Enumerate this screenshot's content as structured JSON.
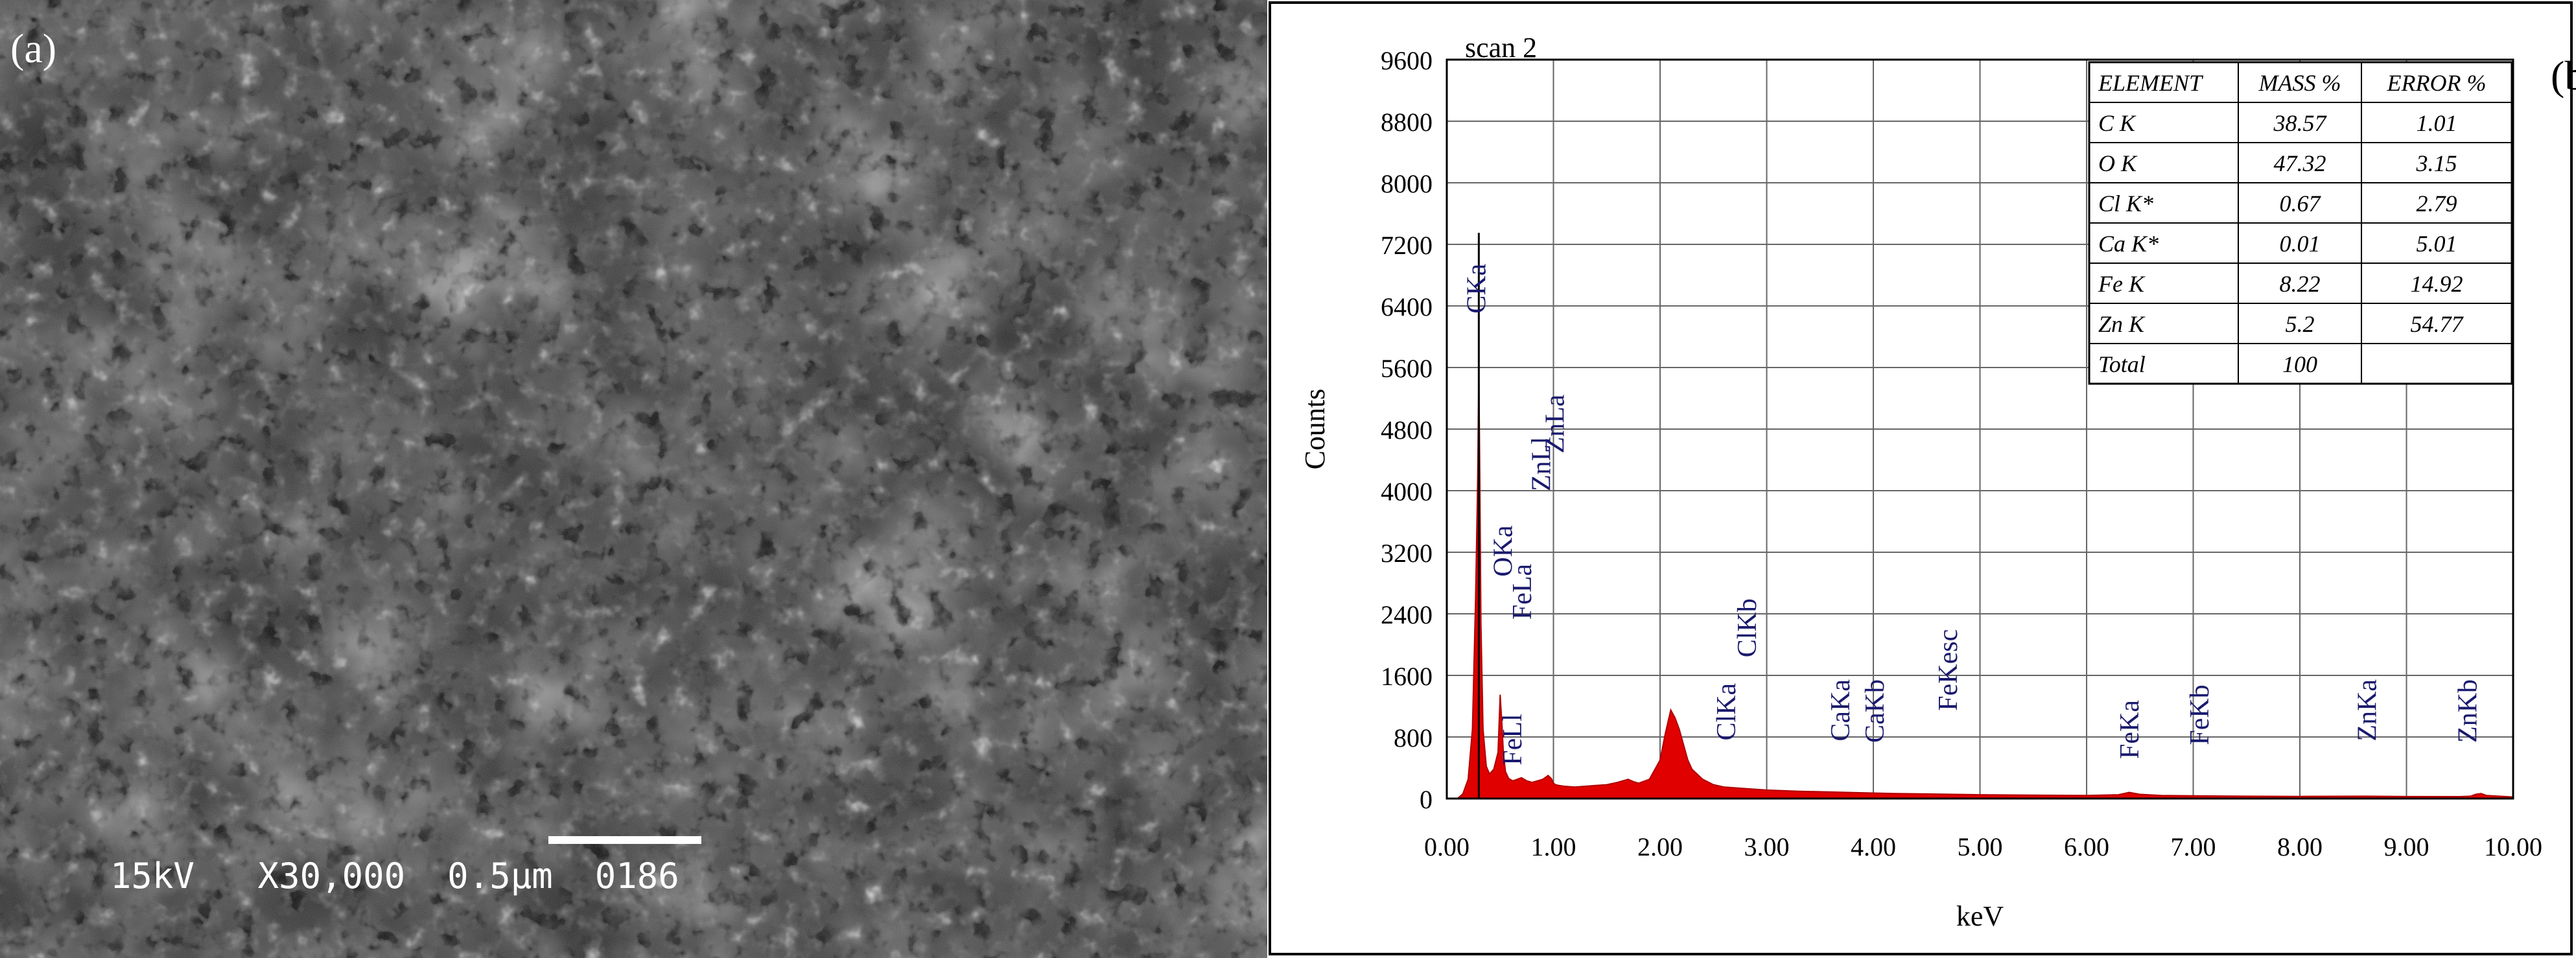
{
  "figure": {
    "panel_a": {
      "label": "(a)",
      "scale_bar_text": "15kV   X30,000  0.5µm  0186"
    },
    "panel_b": {
      "label": "(b)"
    }
  },
  "chart_data": {
    "type": "line",
    "title": "scan 2",
    "xlabel": "keV",
    "ylabel": "Counts",
    "xlim": [
      0,
      10
    ],
    "ylim": [
      0,
      9600
    ],
    "x_ticks": [
      "0.00",
      "1.00",
      "2.00",
      "3.00",
      "4.00",
      "5.00",
      "6.00",
      "7.00",
      "8.00",
      "9.00",
      "10.00"
    ],
    "y_ticks": [
      "0",
      "800",
      "1600",
      "2400",
      "3200",
      "4000",
      "4800",
      "5600",
      "6400",
      "7200",
      "8000",
      "8800",
      "9600"
    ],
    "grid": true,
    "series": [
      {
        "color": "#e00000",
        "x": [
          0.0,
          0.1,
          0.15,
          0.2,
          0.24,
          0.27,
          0.29,
          0.3,
          0.31,
          0.32,
          0.34,
          0.37,
          0.4,
          0.44,
          0.48,
          0.5,
          0.52,
          0.53,
          0.55,
          0.58,
          0.62,
          0.66,
          0.7,
          0.75,
          0.8,
          0.85,
          0.9,
          0.95,
          0.98,
          1.0,
          1.02,
          1.05,
          1.1,
          1.2,
          1.3,
          1.4,
          1.5,
          1.6,
          1.65,
          1.7,
          1.75,
          1.8,
          1.9,
          2.0,
          2.05,
          2.1,
          2.14,
          2.18,
          2.22,
          2.26,
          2.3,
          2.4,
          2.5,
          2.6,
          2.8,
          3.0,
          3.3,
          3.6,
          3.9,
          4.2,
          4.5,
          5.0,
          5.5,
          6.0,
          6.3,
          6.4,
          6.5,
          6.7,
          7.0,
          7.5,
          8.0,
          8.6,
          9.0,
          9.5,
          9.6,
          9.65,
          9.7,
          9.75,
          10.0
        ],
        "y": [
          0,
          0,
          60,
          250,
          900,
          2600,
          4200,
          5600,
          4100,
          2300,
          900,
          420,
          320,
          380,
          600,
          1350,
          900,
          600,
          350,
          260,
          230,
          250,
          270,
          230,
          210,
          230,
          250,
          300,
          260,
          200,
          180,
          170,
          160,
          150,
          160,
          170,
          180,
          210,
          230,
          250,
          220,
          200,
          250,
          500,
          850,
          1150,
          1050,
          900,
          700,
          500,
          380,
          250,
          180,
          150,
          130,
          110,
          95,
          85,
          75,
          65,
          60,
          50,
          45,
          40,
          50,
          80,
          55,
          40,
          35,
          30,
          28,
          30,
          26,
          25,
          30,
          55,
          65,
          40,
          20
        ]
      }
    ],
    "peak_labels": [
      {
        "text": "CKa",
        "x": 0.277
      },
      {
        "text": "OKa",
        "x": 0.525
      },
      {
        "text": "FeLl",
        "x": 0.615
      },
      {
        "text": "FeLa",
        "x": 0.705
      },
      {
        "text": "ZnLl",
        "x": 0.884
      },
      {
        "text": "ZnLa",
        "x": 1.012
      },
      {
        "text": "ClKa",
        "x": 2.621
      },
      {
        "text": "ClKb",
        "x": 2.815
      },
      {
        "text": "CaKa",
        "x": 3.69
      },
      {
        "text": "CaKb",
        "x": 4.012
      },
      {
        "text": "FeKesc",
        "x": 4.7
      },
      {
        "text": "FeKa",
        "x": 6.4
      },
      {
        "text": "FeKb",
        "x": 7.057
      },
      {
        "text": "ZnKa",
        "x": 8.63
      },
      {
        "text": "ZnKb",
        "x": 9.57
      }
    ],
    "table": {
      "headers": [
        "ELEMENT",
        "MASS %",
        "ERROR %"
      ],
      "rows": [
        [
          "C     K",
          "38.57",
          "1.01"
        ],
        [
          "O     K",
          "47.32",
          "3.15"
        ],
        [
          "Cl   K*",
          "0.67",
          "2.79"
        ],
        [
          "Ca  K*",
          "0.01",
          "5.01"
        ],
        [
          "Fe   K",
          "8.22",
          "14.92"
        ],
        [
          "Zn   K",
          "5.2",
          "54.77"
        ],
        [
          "Total",
          "100",
          ""
        ]
      ]
    }
  }
}
